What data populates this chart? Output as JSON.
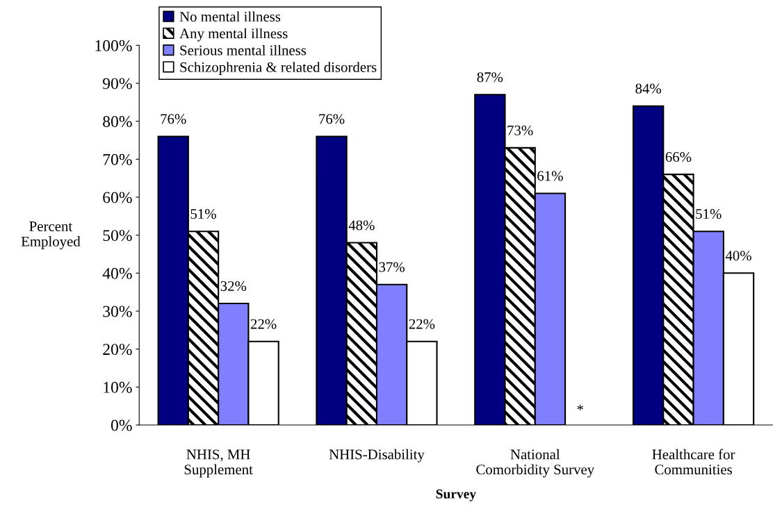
{
  "chart_data": {
    "type": "bar",
    "xlabel": "Survey",
    "ylabel": "Percent\nEmployed",
    "categories": [
      "NHIS, MH\nSupplement",
      "NHIS-Disability",
      "National\nComorbidity Survey",
      "Healthcare for\nCommunities"
    ],
    "series": [
      {
        "name": "No mental illness",
        "color": "#000080",
        "values": [
          76,
          76,
          87,
          84
        ]
      },
      {
        "name": "Any mental illness",
        "color": "#000000",
        "values": [
          51,
          48,
          73,
          66
        ]
      },
      {
        "name": "Serious mental illness",
        "color": "#8080ff",
        "values": [
          32,
          37,
          61,
          51
        ]
      },
      {
        "name": "Schizophrenia & related disorders",
        "color": "#ffffff",
        "values": [
          22,
          22,
          null,
          40
        ]
      }
    ],
    "annotations": [
      "*"
    ],
    "ylim": [
      0,
      100
    ],
    "yticks": [
      {
        "value": 0,
        "label": "0%"
      },
      {
        "value": 10,
        "label": "10%"
      },
      {
        "value": 20,
        "label": "20%"
      },
      {
        "value": 30,
        "label": "30%"
      },
      {
        "value": 40,
        "label": "40%"
      },
      {
        "value": 50,
        "label": "50%"
      },
      {
        "value": 60,
        "label": "60%"
      },
      {
        "value": 70,
        "label": "70%"
      },
      {
        "value": 80,
        "label": "80%"
      },
      {
        "value": 90,
        "label": "90%"
      },
      {
        "value": 100,
        "label": "100%"
      }
    ],
    "value_labels": [
      [
        "76%",
        "76%",
        "87%",
        "84%"
      ],
      [
        "51%",
        "48%",
        "73%",
        "66%"
      ],
      [
        "32%",
        "37%",
        "61%",
        "51%"
      ],
      [
        "22%",
        "22%",
        null,
        "40%"
      ]
    ],
    "grid": false,
    "legend": "top left"
  }
}
